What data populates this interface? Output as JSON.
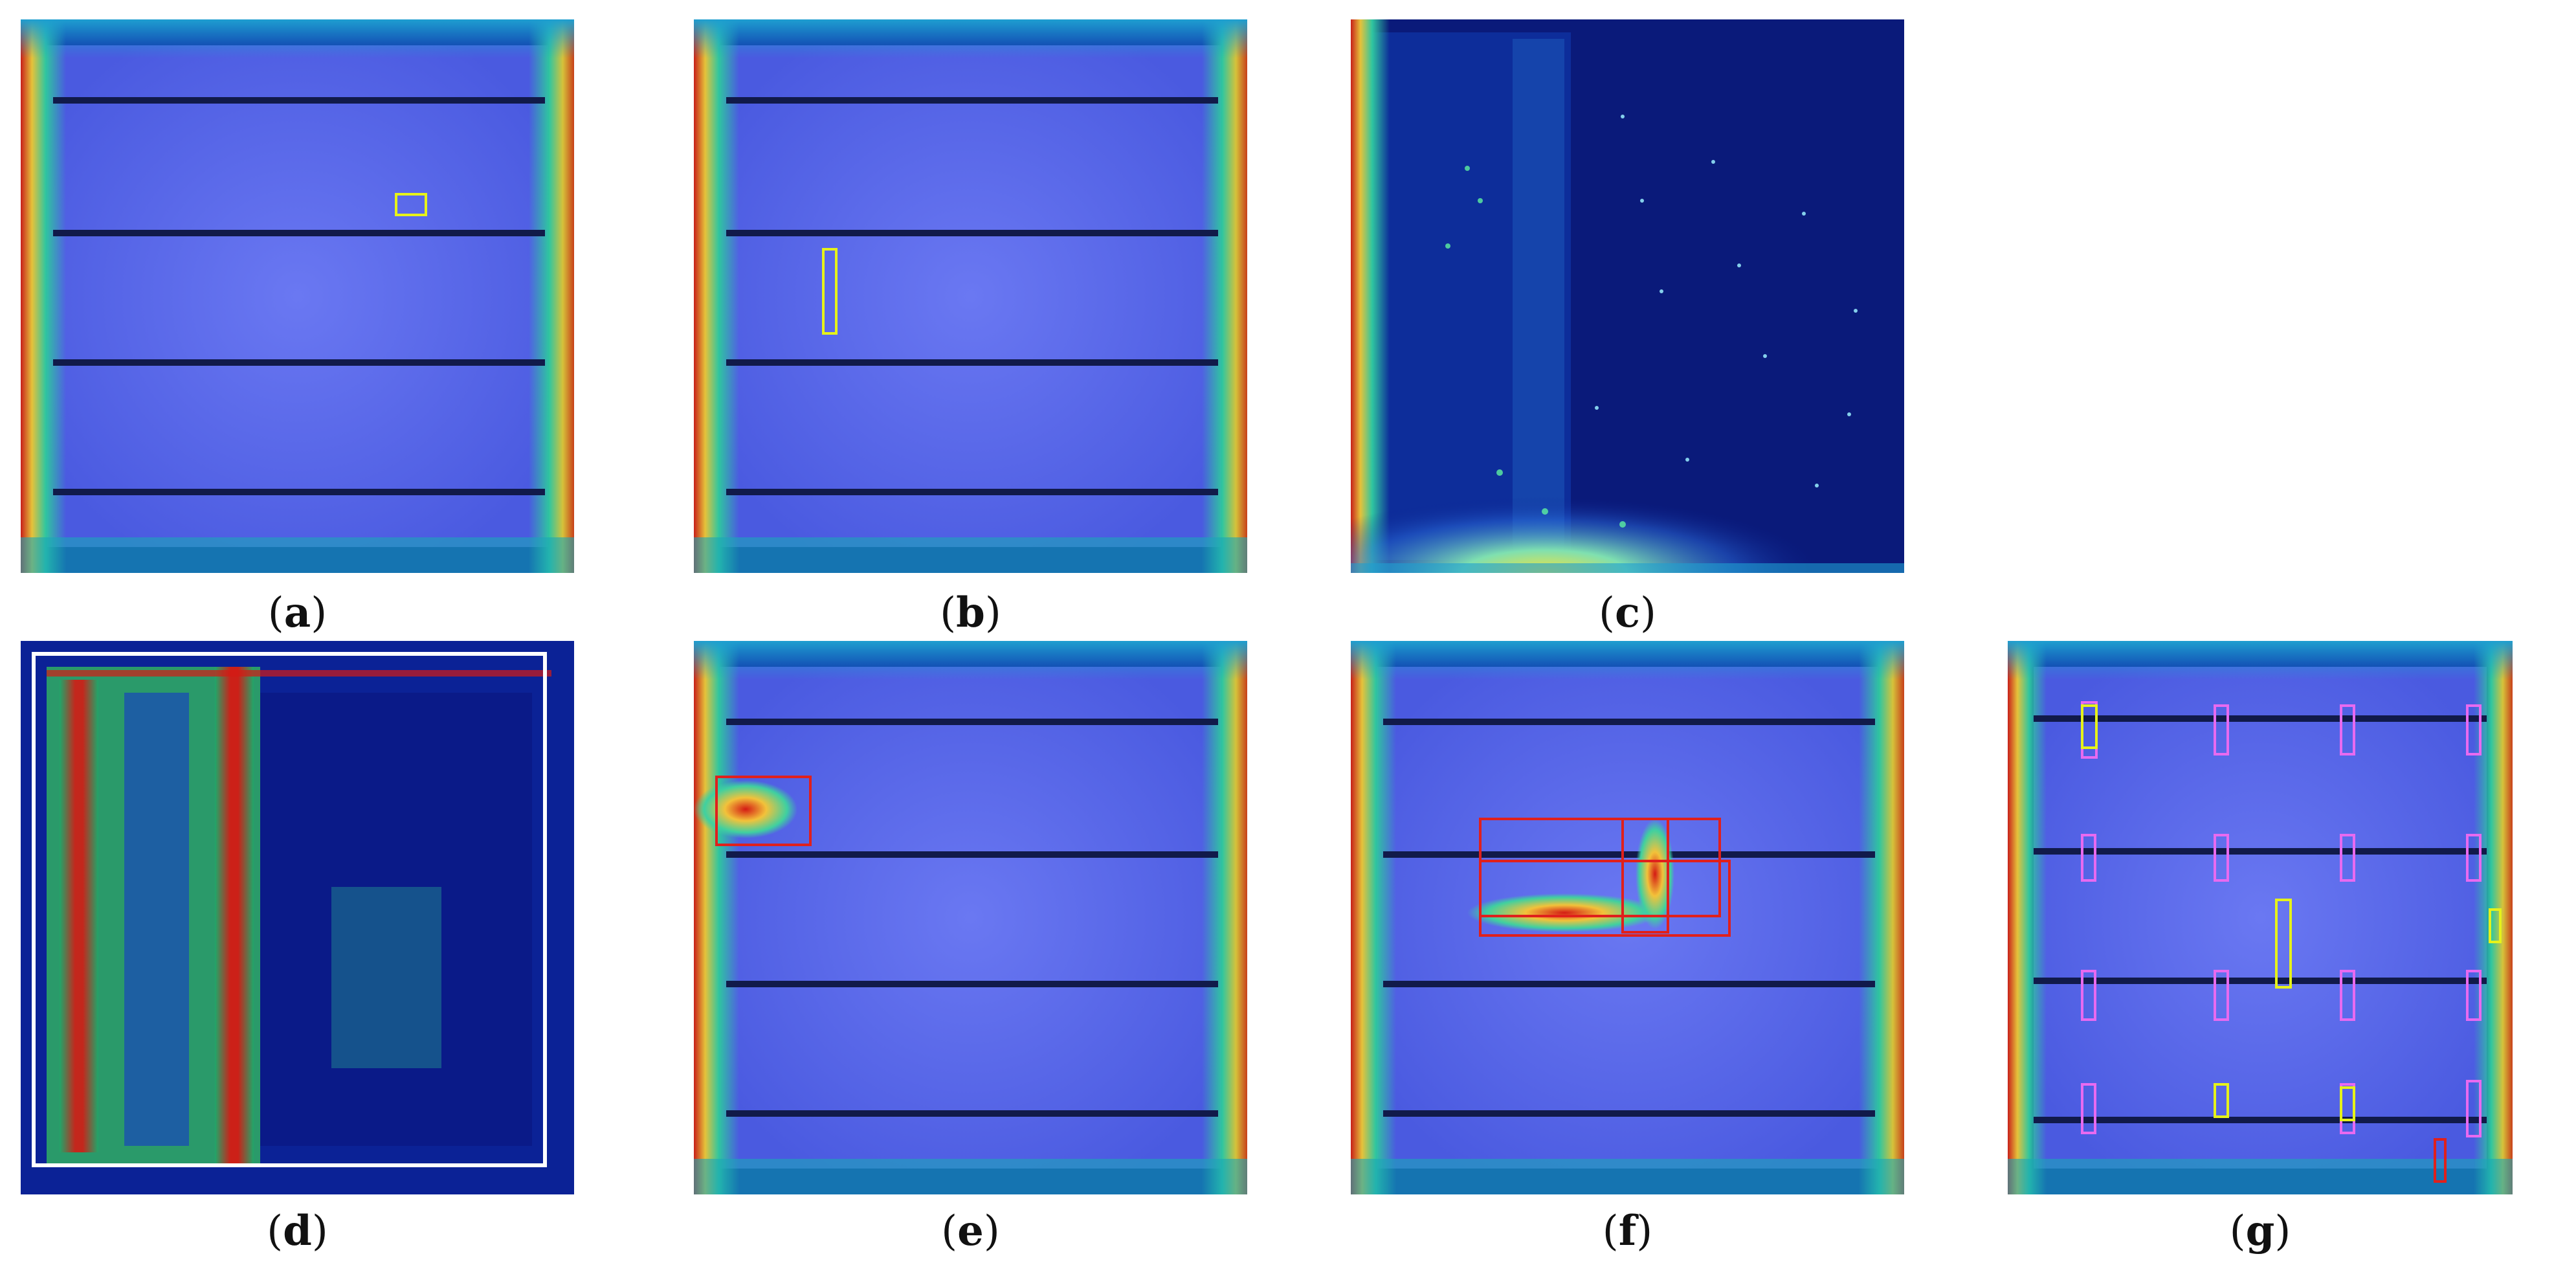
{
  "figure": {
    "panels": [
      {
        "id": "a",
        "caption": "a"
      },
      {
        "id": "b",
        "caption": "b"
      },
      {
        "id": "c",
        "caption": "c"
      },
      {
        "id": "d",
        "caption": "d"
      },
      {
        "id": "e",
        "caption": "e"
      },
      {
        "id": "f",
        "caption": "f"
      },
      {
        "id": "g",
        "caption": "g"
      }
    ]
  },
  "colors": {
    "background": "#0a1d8a",
    "cell_overlay": "#5a6cf0",
    "busbar": "#111a4a",
    "edge_cyan": "#1fd0c8",
    "edge_green": "#3fbf6a",
    "hot_red": "#d41a14",
    "hot_yellow": "#f2e23a",
    "box_yellow": "#e6f21a",
    "box_red": "#e0201c",
    "box_pink": "#e86af0",
    "box_white": "#ffffff"
  }
}
